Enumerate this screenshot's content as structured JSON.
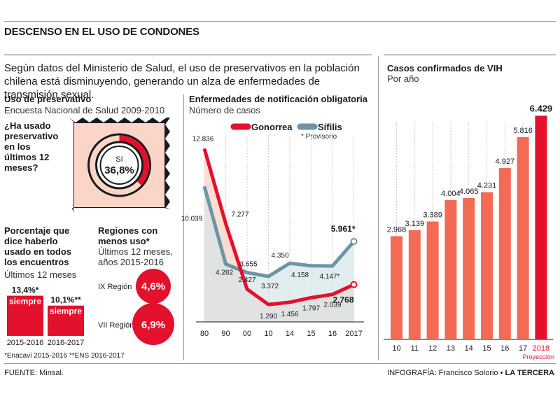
{
  "header": {
    "title": "DESCENSO EN EL USO DE CONDONES",
    "intro": "Según datos del Ministerio de Salud, el uso de preservativos en la población chilena está disminuyendo, generando un alza de enfermedades de transmisión sexual."
  },
  "condom_use": {
    "title": "Uso de preservativo",
    "subtitle": "Encuesta Nacional de Salud 2009-2010",
    "question": "¿Ha usado preservativo en los últimos 12 meses?",
    "answer_label": "Sí",
    "answer_value": "36,8%",
    "fraction": 0.368
  },
  "always_use": {
    "title": "Porcentaje que dice haberlo usado en todos los encuentros",
    "subtitle": "Últimos 12 meses",
    "bars": [
      {
        "value": 13.4,
        "value_label": "13,4%*",
        "word": "siempre",
        "period": "2015-2016"
      },
      {
        "value": 10.1,
        "value_label": "10,1%**",
        "word": "siempre",
        "period": "2016-2017"
      }
    ]
  },
  "regions": {
    "title": "Regiones con menos uso*",
    "subtitle": "Últimos 12 meses, años 2015-2016",
    "items": [
      {
        "name": "IX Región",
        "value": "4,6%"
      },
      {
        "name": "VII Región",
        "value": "6,9%"
      }
    ]
  },
  "footnote": "*Enacavi 2015-2016  **ENS 2016-2017",
  "source": "FUENTE: Minsal.",
  "credit_prefix": "INFOGRAFÍA: Francisco Solorio • ",
  "credit_brand": "LA TERCERA",
  "colors": {
    "red": "#e3112c",
    "salmon": "#f26b55",
    "pale_salmon": "#fbd5c8",
    "teal": "#6a96a6",
    "pale_teal": "#d5e5ea"
  },
  "chart_data": [
    {
      "type": "line",
      "title": "Enfermedades de notificación obligatoria",
      "subtitle": "Número de casos",
      "categories": [
        "80",
        "90",
        "00",
        "10",
        "14",
        "15",
        "16",
        "2017"
      ],
      "series": [
        {
          "name": "Gonorrea",
          "values": [
            12836,
            7277,
            2427,
            1290,
            1456,
            1797,
            2039,
            2768
          ],
          "labels": [
            "12.836",
            "7.277",
            "2.427",
            "1.290",
            "1.456",
            "1.797",
            "2.039",
            "2.768"
          ]
        },
        {
          "name": "Sífilis",
          "values": [
            10039,
            4282,
            3655,
            3372,
            4350,
            4158,
            4147,
            5961
          ],
          "labels": [
            "10.039",
            "4.282",
            "3.655",
            "3.372",
            "4.350",
            "4.158",
            "4.147*",
            "5.961*"
          ]
        }
      ],
      "note": "* Provisorio",
      "ylim": [
        0,
        14000
      ],
      "legend": "top"
    },
    {
      "type": "bar",
      "title": "Casos confirmados de VIH",
      "subtitle": "Por año",
      "categories": [
        "10",
        "11",
        "12",
        "13",
        "14",
        "15",
        "16",
        "17",
        "2018"
      ],
      "values": [
        2968,
        3139,
        3389,
        4004,
        4065,
        4231,
        4927,
        5816,
        6429
      ],
      "labels": [
        "2.968",
        "3.139",
        "3.389",
        "4.004",
        "4.065",
        "4.231",
        "4.927",
        "5.816",
        "6.429"
      ],
      "projection_label": "Proyección",
      "ylim": [
        0,
        7000
      ]
    }
  ]
}
